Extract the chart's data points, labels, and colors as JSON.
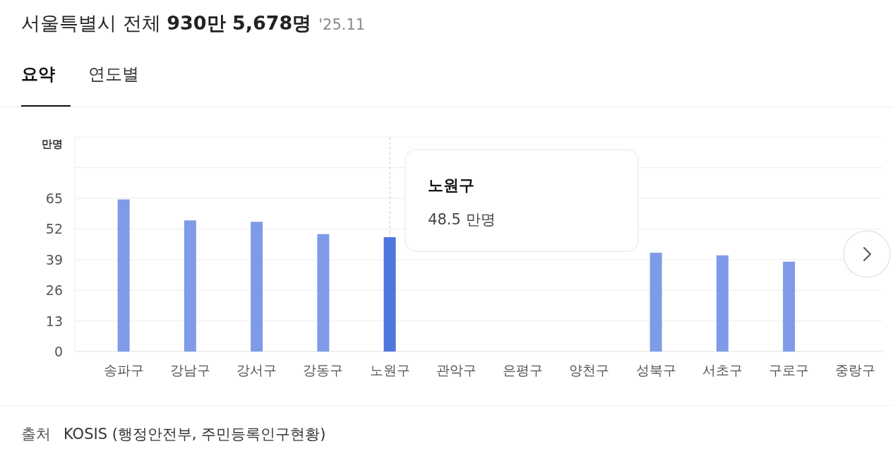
{
  "chart_data": {
    "type": "bar",
    "title": "서울특별시 전체 **930만 5,678명**",
    "subtitle": "'25.11",
    "ylabel": "만명",
    "categories": [
      "송파구",
      "강남구",
      "강서구",
      "강동구",
      "노원구",
      "관악구",
      "은평구",
      "양천구",
      "성북구",
      "서초구",
      "구로구",
      "중랑구"
    ],
    "values": [
      64.5,
      55.6,
      55.0,
      49.8,
      48.5,
      null,
      null,
      null,
      41.9,
      40.8,
      38.1,
      null
    ],
    "colors": [
      "#7f9be8",
      "#7f9be8",
      "#7f9be8",
      "#7f9be8",
      "#4f76de",
      null,
      null,
      null,
      "#7f9be8",
      "#7f9be8",
      "#7f9be8",
      null
    ],
    "ylim": [
      0,
      91
    ],
    "yticks": [
      0,
      13,
      26,
      39,
      52,
      65,
      {
        "value": 78,
        "label": null
      },
      {
        "value": 91,
        "label": null
      }
    ],
    "grid": "y",
    "ref_lines": [
      {
        "axis": "x",
        "value": "노원구",
        "color": "#cccccc",
        "line_style": "dashed"
      }
    ],
    "annotations": [
      "요약",
      "연도별",
      "출처",
      "KOSIS (행정안전부, 주민등록인구현황)",
      {
        "text": "48.5 만명",
        "x": "노원구",
        "y": 48.5
      }
    ]
  }
}
